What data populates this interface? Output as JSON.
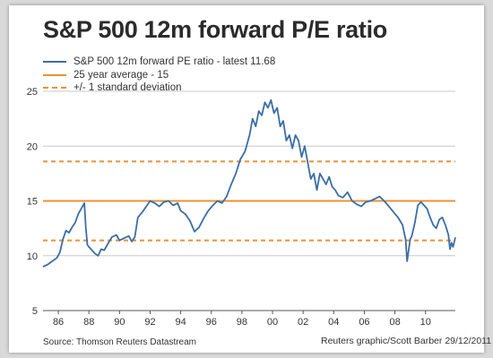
{
  "title": "S&P 500 12m forward P/E ratio",
  "legend": [
    {
      "label": "S&P 500 12m forward PE ratio - latest 11.68"
    },
    {
      "label": "25 year average - 15"
    },
    {
      "label": "+/- 1 standard deviation"
    }
  ],
  "source": "Source: Thomson Reuters Datastream",
  "credit": "Reuters graphic/Scott Barber 29/12/2011",
  "colors": {
    "series": "#3b6ea5",
    "average": "#e8913a",
    "grid": "#c8c8c8",
    "axis": "#555555"
  },
  "chart_data": {
    "type": "line",
    "title": "S&P 500 12m forward P/E ratio",
    "xlim": [
      1985,
      2011.95
    ],
    "ylim": [
      5,
      25
    ],
    "x_ticks": [
      1986,
      1988,
      1990,
      1992,
      1994,
      1996,
      1998,
      2000,
      2002,
      2004,
      2006,
      2008,
      2010
    ],
    "x_tick_labels": [
      "86",
      "88",
      "90",
      "92",
      "94",
      "96",
      "98",
      "00",
      "02",
      "04",
      "06",
      "08",
      "10"
    ],
    "y_ticks": [
      5,
      10,
      15,
      20,
      25
    ],
    "y_tick_labels": [
      "5",
      "10",
      "15",
      "20",
      "25"
    ],
    "grid": "horizontal",
    "legend_position": "top-left",
    "reference_lines": [
      {
        "name": "25 year average - 15",
        "value": 15,
        "style": "solid"
      },
      {
        "name": "+/- 1 standard deviation",
        "value": 18.6,
        "style": "dashed"
      },
      {
        "name": "+/- 1 standard deviation",
        "value": 11.4,
        "style": "dashed"
      }
    ],
    "series": [
      {
        "name": "S&P 500 12m forward PE ratio - latest 11.68",
        "x": [
          1985.0,
          1985.3,
          1985.6,
          1985.9,
          1986.1,
          1986.3,
          1986.5,
          1986.7,
          1986.9,
          1987.1,
          1987.3,
          1987.5,
          1987.7,
          1987.8,
          1987.9,
          1988.0,
          1988.2,
          1988.4,
          1988.6,
          1988.8,
          1989.0,
          1989.2,
          1989.5,
          1989.8,
          1990.0,
          1990.3,
          1990.6,
          1990.8,
          1991.0,
          1991.2,
          1991.5,
          1991.8,
          1992.0,
          1992.3,
          1992.6,
          1992.9,
          1993.2,
          1993.5,
          1993.8,
          1994.0,
          1994.3,
          1994.6,
          1994.9,
          1995.2,
          1995.5,
          1995.8,
          1996.1,
          1996.4,
          1996.7,
          1997.0,
          1997.3,
          1997.6,
          1997.9,
          1998.2,
          1998.5,
          1998.7,
          1998.9,
          1999.1,
          1999.3,
          1999.5,
          1999.7,
          1999.9,
          2000.1,
          2000.3,
          2000.5,
          2000.7,
          2000.9,
          2001.1,
          2001.3,
          2001.5,
          2001.7,
          2001.9,
          2002.1,
          2002.3,
          2002.5,
          2002.7,
          2002.9,
          2003.1,
          2003.3,
          2003.5,
          2003.7,
          2003.9,
          2004.1,
          2004.3,
          2004.6,
          2004.9,
          2005.2,
          2005.5,
          2005.8,
          2006.1,
          2006.4,
          2006.7,
          2007.0,
          2007.3,
          2007.6,
          2007.9,
          2008.2,
          2008.5,
          2008.7,
          2008.8,
          2008.9,
          2009.0,
          2009.1,
          2009.3,
          2009.5,
          2009.7,
          2009.9,
          2010.1,
          2010.3,
          2010.5,
          2010.7,
          2010.9,
          2011.1,
          2011.3,
          2011.5,
          2011.6,
          2011.7,
          2011.8,
          2011.95
        ],
        "values": [
          9.0,
          9.2,
          9.5,
          9.8,
          10.3,
          11.5,
          12.3,
          12.1,
          12.6,
          13.0,
          13.8,
          14.3,
          14.8,
          12.5,
          11.0,
          10.8,
          10.5,
          10.2,
          10.0,
          10.6,
          10.5,
          11.0,
          11.7,
          11.9,
          11.4,
          11.6,
          11.8,
          11.3,
          11.7,
          13.5,
          14.0,
          14.6,
          15.0,
          14.8,
          14.5,
          14.9,
          15.0,
          14.6,
          14.8,
          14.1,
          13.8,
          13.2,
          12.2,
          12.6,
          13.4,
          14.1,
          14.6,
          15.0,
          14.8,
          15.4,
          16.5,
          17.5,
          18.8,
          19.5,
          21.0,
          22.5,
          21.8,
          23.2,
          22.8,
          24.0,
          23.5,
          24.2,
          23.0,
          23.5,
          21.8,
          22.3,
          20.5,
          21.0,
          19.8,
          21.0,
          20.5,
          19.0,
          20.0,
          18.5,
          17.0,
          17.5,
          16.0,
          17.5,
          17.0,
          16.5,
          17.2,
          16.3,
          16.0,
          15.5,
          15.3,
          15.8,
          15.0,
          14.7,
          14.5,
          14.9,
          15.0,
          15.2,
          15.4,
          15.0,
          14.5,
          14.0,
          13.5,
          12.8,
          11.5,
          9.5,
          10.5,
          11.5,
          11.8,
          13.0,
          14.6,
          14.9,
          14.6,
          14.3,
          13.5,
          12.8,
          12.5,
          13.3,
          13.5,
          12.8,
          11.9,
          10.6,
          11.2,
          10.8,
          11.68
        ]
      }
    ]
  }
}
